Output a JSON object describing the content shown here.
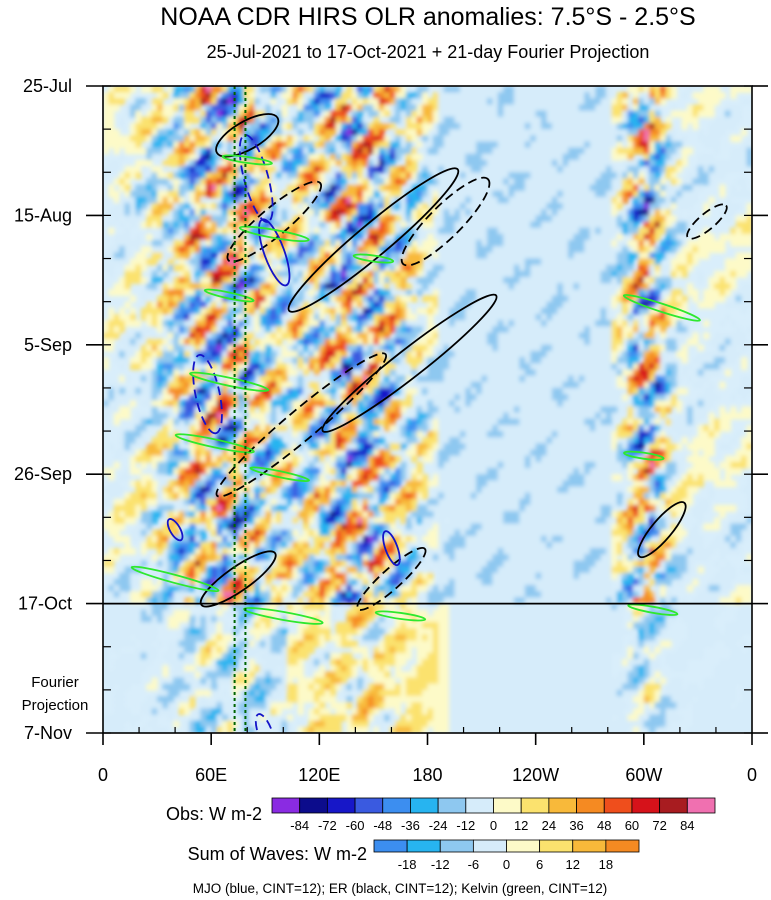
{
  "chart_data": {
    "type": "heatmap",
    "title": "NOAA CDR HIRS OLR anomalies: 7.5°S - 2.5°S",
    "subtitle": "25-Jul-2021 to 17-Oct-2021 + 21-day Fourier Projection",
    "y_ticks": [
      {
        "label": "25-Jul",
        "day": 0
      },
      {
        "label": "15-Aug",
        "day": 21
      },
      {
        "label": "5-Sep",
        "day": 42
      },
      {
        "label": "26-Sep",
        "day": 63
      },
      {
        "label": "17-Oct",
        "day": 84
      },
      {
        "label": "7-Nov",
        "day": 105
      }
    ],
    "y_range_days": [
      0,
      105
    ],
    "projection_start_day": 84,
    "projection_label_1": "Fourier",
    "projection_label_2": "Projection",
    "x_ticks": [
      {
        "label": "0",
        "lon": 0
      },
      {
        "label": "60E",
        "lon": 60
      },
      {
        "label": "120E",
        "lon": 120
      },
      {
        "label": "180",
        "lon": 180
      },
      {
        "label": "120W",
        "lon": 240
      },
      {
        "label": "60W",
        "lon": 300
      },
      {
        "label": "0",
        "lon": 360
      }
    ],
    "x_range_lon": [
      0,
      360
    ],
    "obs_bar": {
      "label": "Obs: W m-2",
      "ticks": [
        "-84",
        "-72",
        "-60",
        "-48",
        "-36",
        "-24",
        "-12",
        "0",
        "12",
        "24",
        "36",
        "48",
        "60",
        "72",
        "84"
      ],
      "colors": [
        "#8a2be2",
        "#0c0c8c",
        "#1717c8",
        "#3a5ae0",
        "#3c8ef0",
        "#27b4f0",
        "#8ec8f0",
        "#d6ecfa",
        "#fdfac8",
        "#fbe26e",
        "#f8b93a",
        "#f58a22",
        "#ef4e1c",
        "#d6121a",
        "#a81c20",
        "#f070b0"
      ]
    },
    "wave_bar": {
      "label": "Sum of Waves: W m-2",
      "ticks": [
        "-18",
        "-12",
        "-6",
        "0",
        "6",
        "12",
        "18"
      ],
      "colors": [
        "#3c8ef0",
        "#27b4f0",
        "#8ec8f0",
        "#d6ecfa",
        "#fdfac8",
        "#fbe26e",
        "#f8b93a",
        "#f58a22"
      ]
    },
    "footnote": "MJO (blue, CINT=12); ER (black, CINT=12); Kelvin (green, CINT=12)",
    "active_bands_lon": [
      {
        "center": 65,
        "width": 60
      },
      {
        "center": 140,
        "width": 55
      },
      {
        "center": 300,
        "width": 22
      }
    ],
    "dotted_lines_lon": [
      73,
      79
    ],
    "colors": {
      "mjo": "#1414c8",
      "er": "#000000",
      "kelvin": "#2ee82e",
      "dotted": "#006400",
      "background": "#d9eefb"
    }
  }
}
